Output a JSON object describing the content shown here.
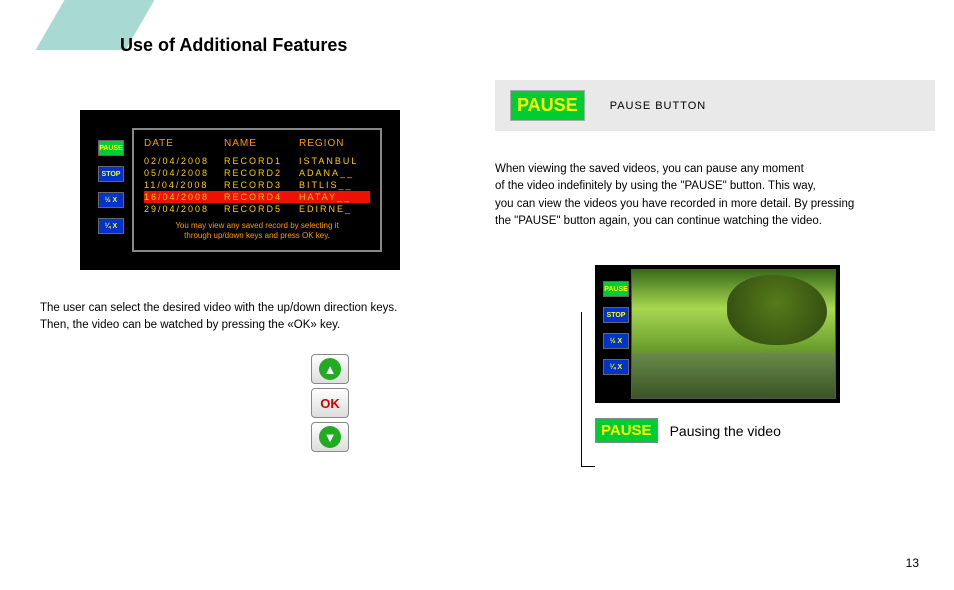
{
  "page": {
    "title": "Use of Additional Features",
    "number": "13"
  },
  "record_table": {
    "headers": {
      "date": "DATE",
      "name": "NAME",
      "region": "REGION"
    },
    "rows": [
      {
        "date": "02/04/2008",
        "name": "RECORD1",
        "region": "ISTANBUL"
      },
      {
        "date": "05/04/2008",
        "name": "RECORD2",
        "region": "ADANA__"
      },
      {
        "date": "11/04/2008",
        "name": "RECORD3",
        "region": "BITLIS__"
      },
      {
        "date": "16/04/2008",
        "name": "RECORD4",
        "region": "HATAY__"
      },
      {
        "date": "29/04/2008",
        "name": "RECORD5",
        "region": "EDIRNE_"
      }
    ],
    "highlight_index": 3,
    "hint_line1": "You may view any saved record by selecting it",
    "hint_line2": "through up/down keys and press OK key."
  },
  "side_buttons": {
    "pause": "PAUSE",
    "stop": "STOP",
    "half": "½ X",
    "quarter": "¼ X"
  },
  "left_text": {
    "line1": "The user can select the desired video with the up/down direction keys.",
    "line2": "Then, the video can be watched by pressing the «OK» key."
  },
  "remote": {
    "ok": "OK"
  },
  "right": {
    "pause_big": "PAUSE",
    "pause_label": "PAUSE BUTTON",
    "para1": "When viewing the saved videos, you can pause any moment",
    "para2": "of the video indefinitely by using the \"PAUSE\" button. This way,",
    "para3": "you can view the videos you have recorded in more detail. By pressing",
    "para4": "the \"PAUSE\" button again, you can continue watching the video.",
    "bottom_pause": "PAUSE",
    "bottom_text": "Pausing the video"
  },
  "colors": {
    "accent": "#a9d9d3",
    "pause_bg": "#00cc33",
    "pause_fg": "#ffff00",
    "blue_btn": "#0033cc",
    "header_orange": "#ff9900",
    "row_yellow": "#ffcc00",
    "highlight_red": "#ee1100"
  }
}
